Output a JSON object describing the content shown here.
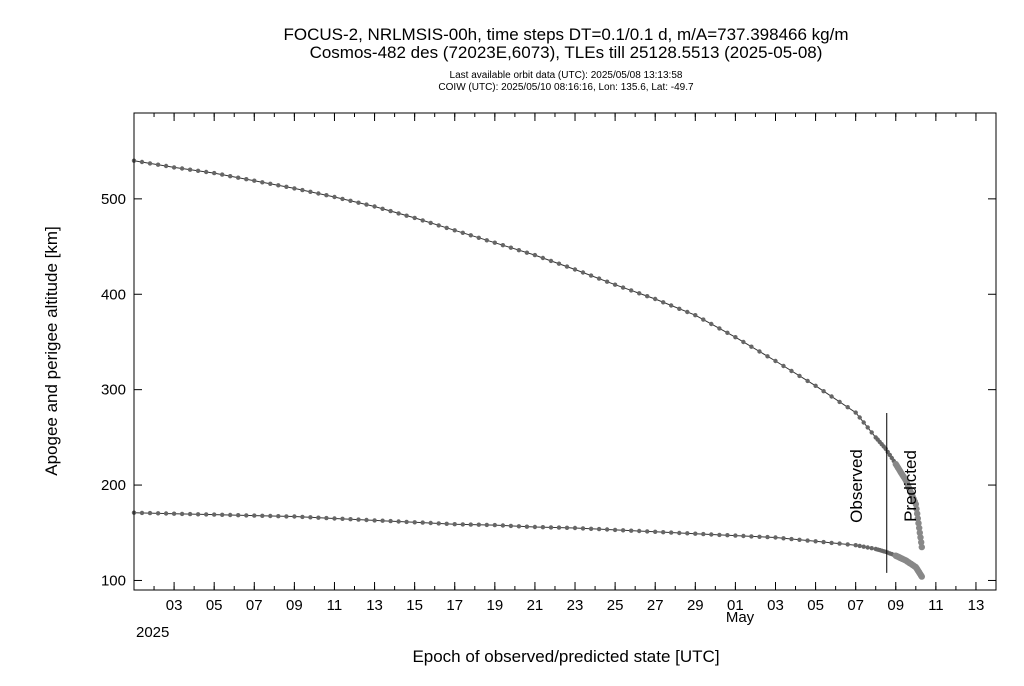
{
  "chart_data": {
    "type": "line",
    "title_lines": [
      "FOCUS-2, NRLMSIS-00h, time steps DT=0.1/0.1 d, m/A=737.398466 kg/m",
      "Cosmos-482 des (72023E,6073), TLEs till 25128.5513 (2025-05-08)"
    ],
    "subtitle_lines": [
      "Last available orbit data (UTC): 2025/05/08 13:13:58",
      "COIW (UTC): 2025/05/10 08:16:16, Lon: 135.6, Lat: -49.7"
    ],
    "xlabel": "Epoch of observed/predicted state [UTC]",
    "ylabel": "Apogee and perigee altitude [km]",
    "x_tick_labels": [
      "03",
      "05",
      "07",
      "09",
      "11",
      "13",
      "15",
      "17",
      "19",
      "21",
      "23",
      "25",
      "27",
      "29",
      "01",
      "03",
      "05",
      "07",
      "09",
      "11",
      "13"
    ],
    "x_tick_dates": [
      "2025-04-03",
      "2025-04-05",
      "2025-04-07",
      "2025-04-09",
      "2025-04-11",
      "2025-04-13",
      "2025-04-15",
      "2025-04-17",
      "2025-04-19",
      "2025-04-21",
      "2025-04-23",
      "2025-04-25",
      "2025-04-27",
      "2025-04-29",
      "2025-05-01",
      "2025-05-03",
      "2025-05-05",
      "2025-05-07",
      "2025-05-09",
      "2025-05-11",
      "2025-05-13"
    ],
    "month_label": "May",
    "year_label": "2025",
    "y_ticks": [
      100,
      200,
      300,
      400,
      500
    ],
    "xlim": [
      "2025-04-01",
      "2025-05-14"
    ],
    "ylim": [
      90,
      590
    ],
    "split_label_observed": "Observed",
    "split_label_predicted": "Predicted",
    "split_date": "2025-05-08.55",
    "grid": false,
    "series": [
      {
        "values": [
          [
            "2025-04-01",
            540
          ],
          [
            "2025-04-03",
            533
          ],
          [
            "2025-04-05",
            527
          ],
          [
            "2025-04-07",
            519
          ],
          [
            "2025-04-09",
            511
          ],
          [
            "2025-04-11",
            502
          ],
          [
            "2025-04-13",
            492
          ],
          [
            "2025-04-15",
            480
          ],
          [
            "2025-04-17",
            467
          ],
          [
            "2025-04-19",
            454
          ],
          [
            "2025-04-21",
            441
          ],
          [
            "2025-04-23",
            426
          ],
          [
            "2025-04-25",
            410
          ],
          [
            "2025-04-27",
            395
          ],
          [
            "2025-04-29",
            378
          ],
          [
            "2025-05-01",
            355
          ],
          [
            "2025-05-03",
            330
          ],
          [
            "2025-05-05",
            304
          ],
          [
            "2025-05-07",
            276
          ],
          [
            "2025-05-08",
            250
          ],
          [
            "2025-05-08.5",
            238
          ],
          [
            "2025-05-09",
            222
          ],
          [
            "2025-05-09.5",
            205
          ],
          [
            "2025-05-10",
            180
          ],
          [
            "2025-05-10.3",
            135
          ]
        ]
      },
      {
        "values": [
          [
            "2025-04-01",
            171
          ],
          [
            "2025-04-03",
            170
          ],
          [
            "2025-04-05",
            169
          ],
          [
            "2025-04-07",
            168
          ],
          [
            "2025-04-09",
            167
          ],
          [
            "2025-04-11",
            165
          ],
          [
            "2025-04-13",
            163
          ],
          [
            "2025-04-15",
            161
          ],
          [
            "2025-04-17",
            159
          ],
          [
            "2025-04-19",
            158
          ],
          [
            "2025-04-21",
            156
          ],
          [
            "2025-04-23",
            155
          ],
          [
            "2025-04-25",
            153
          ],
          [
            "2025-04-27",
            151
          ],
          [
            "2025-04-29",
            149
          ],
          [
            "2025-05-01",
            147
          ],
          [
            "2025-05-03",
            145
          ],
          [
            "2025-05-05",
            141
          ],
          [
            "2025-05-07",
            137
          ],
          [
            "2025-05-08",
            133
          ],
          [
            "2025-05-08.5",
            130
          ],
          [
            "2025-05-09",
            126
          ],
          [
            "2025-05-09.5",
            121
          ],
          [
            "2025-05-10",
            114
          ],
          [
            "2025-05-10.3",
            104
          ]
        ]
      }
    ]
  }
}
